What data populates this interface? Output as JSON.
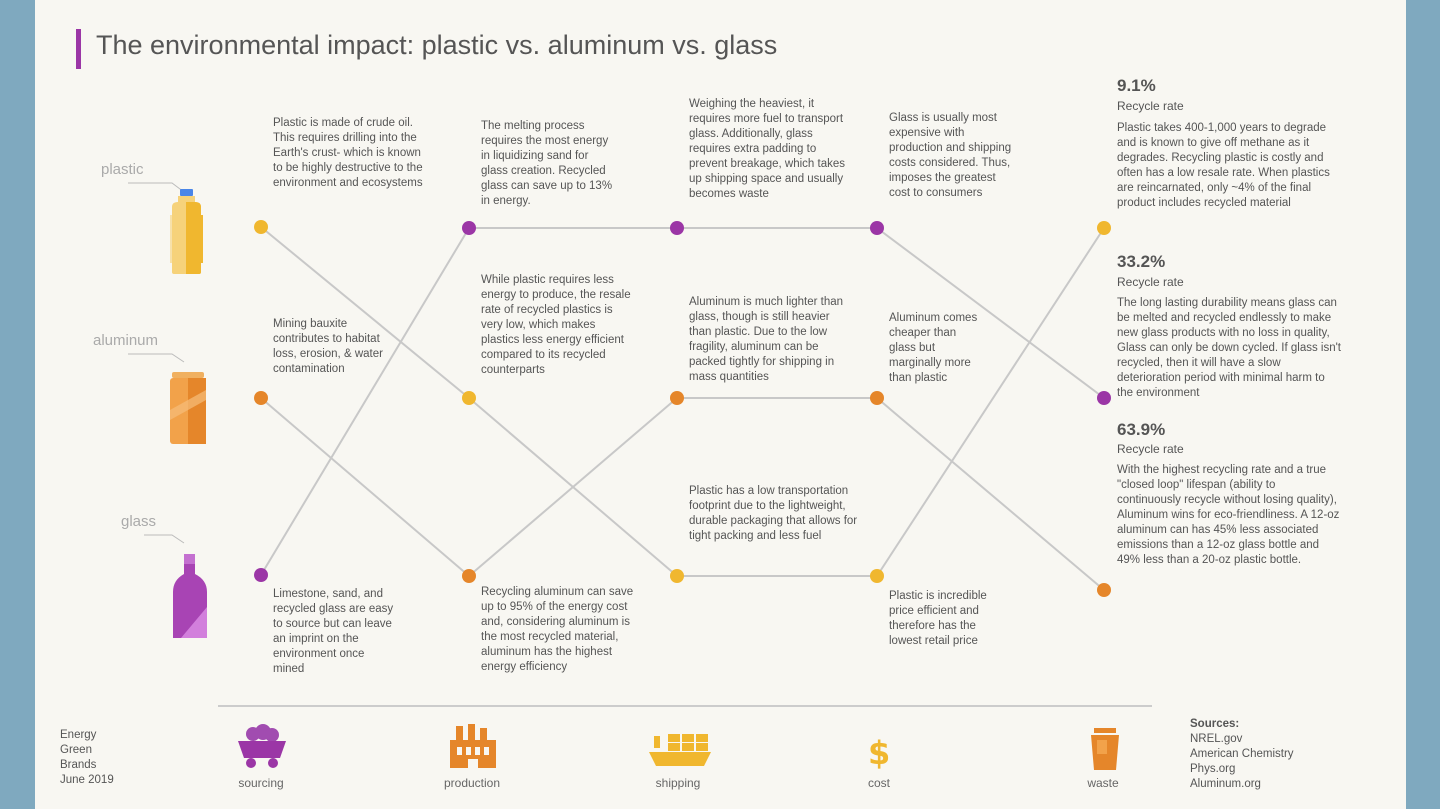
{
  "title": "The environmental impact: plastic vs. aluminum vs. glass",
  "colors": {
    "plastic": "#f0b72f",
    "aluminum": "#e5862a",
    "glass": "#9b36a6",
    "line": "#c8c8c8",
    "background": "#7fa9bf"
  },
  "materials": [
    {
      "id": "plastic",
      "label": "plastic"
    },
    {
      "id": "aluminum",
      "label": "aluminum"
    },
    {
      "id": "glass",
      "label": "glass"
    }
  ],
  "stages": [
    {
      "label": "sourcing",
      "icon": "mine-cart-icon"
    },
    {
      "label": "production",
      "icon": "factory-icon"
    },
    {
      "label": "shipping",
      "icon": "cargo-ship-icon"
    },
    {
      "label": "cost",
      "icon": "dollar-icon"
    },
    {
      "label": "waste",
      "icon": "trash-bin-icon"
    }
  ],
  "texts": {
    "sourcing_plastic": "Plastic is made of crude oil. This requires drilling into the Earth's crust- which is known to be highly destructive to the environment and ecosystems",
    "sourcing_aluminum": "Mining bauxite contributes to habitat loss, erosion, & water contamination",
    "sourcing_glass": "Limestone, sand, and recycled glass are easy to source but can leave an imprint on the environment once mined",
    "production_glass": "The melting process requires the most energy in liquidizing sand for glass creation. Recycled glass can save up to 13% in energy.",
    "production_plastic": "While plastic requires less energy to produce, the resale rate of recycled plastics is very low, which makes plastics less energy efficient compared to its recycled counterparts",
    "production_aluminum": "Recycling aluminum can save up to 95% of the energy cost and, considering aluminum is the most recycled material, aluminum has the highest energy efficiency",
    "shipping_glass": "Weighing the heaviest, it requires more fuel to transport glass. Additionally, glass requires extra padding to prevent breakage, which takes up shipping space and usually becomes waste",
    "shipping_aluminum": "Aluminum is much lighter than glass, though is still heavier than plastic. Due to the low fragility, aluminum can be packed tightly for shipping in mass quantities",
    "shipping_plastic": "Plastic has a low transportation footprint due to the lightweight, durable packaging that allows for tight packing and less fuel",
    "cost_glass": "Glass is usually most expensive with production and shipping costs considered. Thus, imposes the greatest cost to consumers",
    "cost_aluminum": "Aluminum comes cheaper than glass but marginally more than plastic",
    "cost_plastic": "Plastic is incredible price efficient and therefore has the lowest retail price"
  },
  "waste": [
    {
      "material": "plastic",
      "rate": "9.1%",
      "rate_label": "Recycle rate",
      "text": "Plastic takes 400-1,000 years to degrade and is known to give off methane as it degrades. Recycling plastic is costly and often has a low resale rate. When plastics are reincarnated, only ~4% of the final product includes recycled material"
    },
    {
      "material": "glass",
      "rate": "33.2%",
      "rate_label": "Recycle rate",
      "text": "The long lasting durability means glass can be melted and recycled endlessly to make new glass products with no loss in quality, Glass can only be down cycled. If glass isn't recycled, then it will have a slow deterioration period with minimal harm to the environment"
    },
    {
      "material": "aluminum",
      "rate": "63.9%",
      "rate_label": "Recycle rate",
      "text": "With the highest recycling rate and a true \"closed loop\" lifespan (ability to continuously recycle without losing quality), Aluminum wins for eco-friendliness. A 12-oz aluminum can has 45% less associated emissions than a 12-oz glass bottle and 49% less than a 20-oz plastic bottle."
    }
  ],
  "credit": [
    "Energy",
    "Green",
    "Brands",
    "June 2019"
  ],
  "sources": {
    "heading": "Sources:",
    "items": [
      "NREL.gov",
      "American Chemistry",
      "Phys.org",
      "Aluminum.org"
    ]
  }
}
